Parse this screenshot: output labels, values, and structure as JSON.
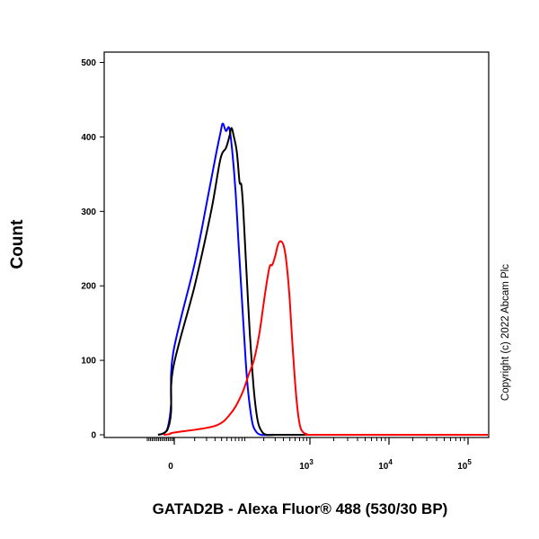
{
  "chart_data": {
    "type": "line",
    "chart_kind": "flow-cytometry-histogram",
    "title": "",
    "xlabel": "GATAD2B - Alexa Fluor® 488 (530/30 BP)",
    "ylabel": "Count",
    "x_scale": "biexponential",
    "xlim": [
      -300,
      200000
    ],
    "ylim": [
      0,
      510
    ],
    "grid": false,
    "legend": "none",
    "y_ticks": [
      {
        "value": 0,
        "label": "0"
      },
      {
        "value": 100,
        "label": "100"
      },
      {
        "value": 200,
        "label": "200"
      },
      {
        "value": 300,
        "label": "300"
      },
      {
        "value": 400,
        "label": "400"
      },
      {
        "value": 500,
        "label": "500"
      }
    ],
    "x_ticks": [
      {
        "value": 0,
        "base": "0",
        "exp": ""
      },
      {
        "value": 1000,
        "base": "10",
        "exp": "3"
      },
      {
        "value": 10000,
        "base": "10",
        "exp": "4"
      },
      {
        "value": 100000,
        "base": "10",
        "exp": "5"
      }
    ],
    "series": [
      {
        "color": "#0000ff",
        "points": [
          [
            -150,
            0
          ],
          [
            -100,
            2
          ],
          [
            -60,
            10
          ],
          [
            -30,
            40
          ],
          [
            -10,
            110
          ],
          [
            10,
            230
          ],
          [
            20,
            310
          ],
          [
            30,
            370
          ],
          [
            38,
            405
          ],
          [
            42,
            418
          ],
          [
            48,
            408
          ],
          [
            55,
            412
          ],
          [
            62,
            380
          ],
          [
            70,
            330
          ],
          [
            80,
            250
          ],
          [
            95,
            150
          ],
          [
            110,
            70
          ],
          [
            130,
            20
          ],
          [
            150,
            5
          ],
          [
            180,
            0
          ],
          [
            250,
            0
          ],
          [
            600,
            0
          ],
          [
            5000,
            0
          ],
          [
            200000,
            0
          ]
        ]
      },
      {
        "color": "#000000",
        "points": [
          [
            -150,
            0
          ],
          [
            -100,
            2
          ],
          [
            -60,
            8
          ],
          [
            -30,
            30
          ],
          [
            -10,
            90
          ],
          [
            10,
            200
          ],
          [
            25,
            300
          ],
          [
            38,
            370
          ],
          [
            48,
            385
          ],
          [
            55,
            400
          ],
          [
            60,
            412
          ],
          [
            66,
            400
          ],
          [
            74,
            380
          ],
          [
            82,
            340
          ],
          [
            88,
            335
          ],
          [
            95,
            300
          ],
          [
            105,
            230
          ],
          [
            120,
            140
          ],
          [
            140,
            60
          ],
          [
            160,
            20
          ],
          [
            185,
            5
          ],
          [
            220,
            0
          ],
          [
            300,
            0
          ],
          [
            600,
            0
          ],
          [
            5000,
            0
          ],
          [
            200000,
            0
          ]
        ]
      },
      {
        "color": "#ff0000",
        "points": [
          [
            -100,
            0
          ],
          [
            -40,
            1
          ],
          [
            0,
            3
          ],
          [
            30,
            12
          ],
          [
            60,
            30
          ],
          [
            90,
            55
          ],
          [
            115,
            80
          ],
          [
            140,
            100
          ],
          [
            170,
            135
          ],
          [
            210,
            190
          ],
          [
            245,
            225
          ],
          [
            270,
            228
          ],
          [
            300,
            240
          ],
          [
            330,
            255
          ],
          [
            360,
            260
          ],
          [
            400,
            255
          ],
          [
            440,
            235
          ],
          [
            490,
            190
          ],
          [
            540,
            130
          ],
          [
            600,
            70
          ],
          [
            660,
            30
          ],
          [
            720,
            10
          ],
          [
            800,
            3
          ],
          [
            900,
            1
          ],
          [
            1100,
            0
          ],
          [
            10000,
            0
          ],
          [
            200000,
            0
          ]
        ]
      }
    ]
  },
  "copyright": "Copyright (c) 2022 Abcam Plc"
}
